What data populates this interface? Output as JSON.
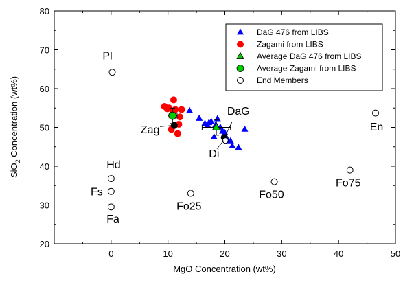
{
  "chart_data": {
    "type": "scatter",
    "title": "",
    "xlabel": "MgO Concentration (wt%)",
    "ylabel_prefix": "SiO",
    "ylabel_sub": "2",
    "ylabel_suffix": " Concentration (wt%)",
    "xlim": [
      -10,
      50
    ],
    "ylim": [
      20,
      80
    ],
    "x_ticks": [
      0,
      10,
      20,
      30,
      40,
      50
    ],
    "y_ticks": [
      20,
      30,
      40,
      50,
      60,
      70,
      80
    ],
    "grid": false,
    "legend_position": "top-right",
    "colors": {
      "dag_libs": "#0000ff",
      "zagami_libs": "#ff0000",
      "avg_dag": "#00cc00",
      "avg_zagami": "#00cc00",
      "end_members": "#ffffff",
      "reference": "#000000"
    },
    "series": [
      {
        "name": "DaG 476 from LIBS",
        "marker": "triangle",
        "color": "#0000ff",
        "x": [
          13.8,
          15.5,
          16.5,
          17.0,
          17.2,
          17.6,
          18.1,
          18.4,
          18.7,
          19.2,
          19.6,
          20.0,
          20.4,
          21.0,
          21.3,
          22.4,
          23.5
        ],
        "y": [
          54.3,
          52.3,
          51.0,
          50.5,
          51.2,
          51.5,
          47.5,
          50.7,
          52.2,
          50.0,
          49.0,
          48.6,
          47.0,
          46.5,
          45.2,
          44.8,
          49.5
        ]
      },
      {
        "name": "Zagami from LIBS",
        "marker": "circle",
        "color": "#ff0000",
        "x": [
          9.4,
          9.9,
          10.2,
          10.6,
          10.8,
          11.0,
          11.3,
          11.7,
          11.9,
          12.1,
          12.4
        ],
        "y": [
          55.4,
          54.8,
          55.0,
          49.5,
          53.5,
          57.1,
          54.6,
          48.4,
          50.8,
          52.7,
          54.6
        ]
      },
      {
        "name": "Average DaG 476 from LIBS",
        "marker": "triangle",
        "color": "#00cc00",
        "x": [
          18.5
        ],
        "y": [
          50.0
        ],
        "xerr": 2.5,
        "yerr": 2.0
      },
      {
        "name": "Average Zagami from LIBS",
        "marker": "circle",
        "color": "#00cc00",
        "x": [
          10.8
        ],
        "y": [
          53.0
        ],
        "xerr": 0.8,
        "yerr": 2.0
      },
      {
        "name": "End Members",
        "marker": "open-circle",
        "color": "#ffffff",
        "points": [
          {
            "label": "Pl",
            "x": 0.2,
            "y": 64.2
          },
          {
            "label": "Hd",
            "x": 0.0,
            "y": 36.8
          },
          {
            "label": "Fs",
            "x": 0.0,
            "y": 33.5
          },
          {
            "label": "Fa",
            "x": 0.0,
            "y": 29.5
          },
          {
            "label": "Fo25",
            "x": 14.0,
            "y": 33.0
          },
          {
            "label": "Fo50",
            "x": 28.7,
            "y": 36.0
          },
          {
            "label": "Fo75",
            "x": 42.0,
            "y": 39.0
          },
          {
            "label": "En",
            "x": 46.5,
            "y": 53.7
          }
        ]
      }
    ],
    "reference_points": [
      {
        "label": "Zag",
        "x": 11.1,
        "y": 50.5
      },
      {
        "label": "DaG",
        "x": 19.9,
        "y": 47.4
      },
      {
        "label": "Di",
        "x": 18.4,
        "y": 55.0
      }
    ],
    "annotations": [
      {
        "text": "Pl",
        "x": -1.5,
        "y": 67.5
      },
      {
        "text": "Hd",
        "x": -0.8,
        "y": 39.5
      },
      {
        "text": "Fs",
        "x": -3.6,
        "y": 32.5
      },
      {
        "text": "Fa",
        "x": -0.8,
        "y": 25.5
      },
      {
        "text": "Fo25",
        "x": 11.5,
        "y": 28.8
      },
      {
        "text": "Fo50",
        "x": 26.0,
        "y": 31.8
      },
      {
        "text": "Fo75",
        "x": 39.5,
        "y": 34.8
      },
      {
        "text": "En",
        "x": 45.5,
        "y": 49.2
      },
      {
        "text": "Zag",
        "x": 5.2,
        "y": 48.5
      },
      {
        "text": "DaG",
        "x": 20.4,
        "y": 53.3
      },
      {
        "text": "Di",
        "x": 17.2,
        "y": 42.3
      }
    ]
  }
}
